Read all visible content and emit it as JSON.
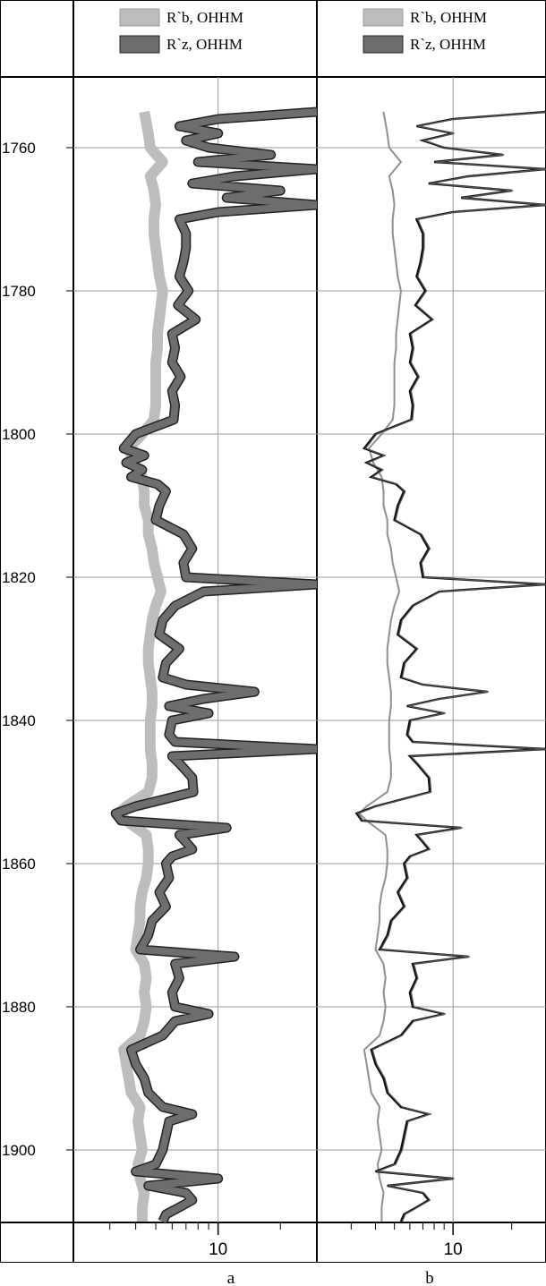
{
  "chart_data": {
    "type": "line",
    "layout": "well-log, two panels side by side sharing a depth axis",
    "y_axis": {
      "ylim": [
        1910,
        1755
      ],
      "ticks": [
        1760,
        1780,
        1800,
        1820,
        1840,
        1860,
        1880,
        1900
      ],
      "inverted": true,
      "grid": true
    },
    "x_axis": {
      "scale": "log",
      "xlim": [
        2,
        30
      ],
      "tick_labels": [
        {
          "value": 10,
          "label": "10"
        }
      ],
      "minor_ticks": [
        2,
        3,
        4,
        5,
        6,
        7,
        8,
        9,
        20,
        30
      ],
      "grid": true
    },
    "legend": [
      {
        "key": "rb",
        "label": "R`b, OHHM",
        "color": "#bdbdbd"
      },
      {
        "key": "rz",
        "label": "R`z, OHHM",
        "color": "#6e6e6e"
      }
    ],
    "panels": [
      {
        "id": "a",
        "label": "a",
        "rb_style": "thick light band",
        "rz_style": "thick dark band"
      },
      {
        "id": "b",
        "label": "b",
        "rb_style": "thin light line",
        "rz_style": "thin dark line"
      }
    ],
    "series": [
      {
        "name": "R`b, OHHM",
        "key": "rb",
        "points": [
          [
            1755,
            4.4
          ],
          [
            1758,
            4.6
          ],
          [
            1760,
            4.7
          ],
          [
            1762,
            5.4
          ],
          [
            1764,
            4.7
          ],
          [
            1766,
            4.9
          ],
          [
            1768,
            5.0
          ],
          [
            1770,
            4.9
          ],
          [
            1772,
            4.9
          ],
          [
            1774,
            5.0
          ],
          [
            1776,
            5.1
          ],
          [
            1778,
            5.2
          ],
          [
            1780,
            5.4
          ],
          [
            1782,
            5.3
          ],
          [
            1784,
            5.2
          ],
          [
            1786,
            5.1
          ],
          [
            1788,
            5.1
          ],
          [
            1790,
            5.0
          ],
          [
            1792,
            5.0
          ],
          [
            1794,
            5.0
          ],
          [
            1796,
            5.0
          ],
          [
            1798,
            4.9
          ],
          [
            1800,
            4.3
          ],
          [
            1802,
            3.7
          ],
          [
            1804,
            3.9
          ],
          [
            1806,
            4.3
          ],
          [
            1808,
            4.4
          ],
          [
            1810,
            4.4
          ],
          [
            1812,
            4.6
          ],
          [
            1814,
            4.6
          ],
          [
            1816,
            4.8
          ],
          [
            1818,
            4.9
          ],
          [
            1820,
            5.1
          ],
          [
            1822,
            5.3
          ],
          [
            1824,
            5.0
          ],
          [
            1826,
            4.8
          ],
          [
            1828,
            4.7
          ],
          [
            1830,
            4.6
          ],
          [
            1832,
            4.6
          ],
          [
            1834,
            4.7
          ],
          [
            1836,
            4.8
          ],
          [
            1838,
            4.8
          ],
          [
            1840,
            4.7
          ],
          [
            1842,
            4.7
          ],
          [
            1844,
            4.7
          ],
          [
            1846,
            4.8
          ],
          [
            1848,
            4.8
          ],
          [
            1850,
            4.6
          ],
          [
            1852,
            3.6
          ],
          [
            1853,
            3.3
          ],
          [
            1854,
            3.6
          ],
          [
            1856,
            4.5
          ],
          [
            1858,
            4.6
          ],
          [
            1860,
            4.6
          ],
          [
            1862,
            4.5
          ],
          [
            1864,
            4.3
          ],
          [
            1866,
            4.2
          ],
          [
            1868,
            4.2
          ],
          [
            1870,
            4.1
          ],
          [
            1872,
            4.0
          ],
          [
            1874,
            4.4
          ],
          [
            1876,
            4.5
          ],
          [
            1878,
            4.4
          ],
          [
            1880,
            4.5
          ],
          [
            1882,
            4.4
          ],
          [
            1884,
            4.2
          ],
          [
            1886,
            3.5
          ],
          [
            1888,
            3.6
          ],
          [
            1890,
            3.7
          ],
          [
            1892,
            3.8
          ],
          [
            1894,
            4.2
          ],
          [
            1896,
            4.1
          ],
          [
            1898,
            4.2
          ],
          [
            1900,
            4.3
          ],
          [
            1902,
            4.1
          ],
          [
            1904,
            4.2
          ],
          [
            1906,
            4.4
          ],
          [
            1908,
            4.3
          ],
          [
            1910,
            4.3
          ]
        ]
      },
      {
        "name": "R`z, OHHM",
        "key": "rz",
        "points": [
          [
            1755,
            30
          ],
          [
            1756,
            10
          ],
          [
            1757,
            6.5
          ],
          [
            1758,
            10
          ],
          [
            1759,
            7
          ],
          [
            1760,
            9
          ],
          [
            1761,
            18
          ],
          [
            1762,
            8
          ],
          [
            1763,
            30
          ],
          [
            1764,
            12
          ],
          [
            1765,
            7.5
          ],
          [
            1766,
            20
          ],
          [
            1767,
            11
          ],
          [
            1768,
            30
          ],
          [
            1769,
            10
          ],
          [
            1770,
            6.5
          ],
          [
            1772,
            7
          ],
          [
            1774,
            7
          ],
          [
            1776,
            6.8
          ],
          [
            1778,
            6.5
          ],
          [
            1780,
            7.2
          ],
          [
            1782,
            6.4
          ],
          [
            1784,
            7.8
          ],
          [
            1786,
            6.0
          ],
          [
            1788,
            6.2
          ],
          [
            1790,
            6.0
          ],
          [
            1792,
            6.6
          ],
          [
            1794,
            6.0
          ],
          [
            1796,
            6.2
          ],
          [
            1798,
            6.1
          ],
          [
            1800,
            4.0
          ],
          [
            1802,
            3.5
          ],
          [
            1803,
            4.4
          ],
          [
            1804,
            3.6
          ],
          [
            1805,
            4.3
          ],
          [
            1806,
            3.8
          ],
          [
            1807,
            5.1
          ],
          [
            1808,
            5.6
          ],
          [
            1810,
            5.2
          ],
          [
            1812,
            5.0
          ],
          [
            1814,
            6.8
          ],
          [
            1816,
            7.5
          ],
          [
            1818,
            6.8
          ],
          [
            1820,
            7.0
          ],
          [
            1821,
            30
          ],
          [
            1822,
            8.5
          ],
          [
            1824,
            6.2
          ],
          [
            1826,
            5.4
          ],
          [
            1828,
            5.2
          ],
          [
            1830,
            6.5
          ],
          [
            1832,
            5.6
          ],
          [
            1834,
            5.4
          ],
          [
            1835,
            7.0
          ],
          [
            1836,
            15
          ],
          [
            1837,
            8.5
          ],
          [
            1838,
            5.8
          ],
          [
            1839,
            9.0
          ],
          [
            1840,
            6.0
          ],
          [
            1842,
            5.8
          ],
          [
            1843,
            6.2
          ],
          [
            1844,
            30
          ],
          [
            1845,
            6.0
          ],
          [
            1846,
            6.5
          ],
          [
            1848,
            7.5
          ],
          [
            1850,
            7.6
          ],
          [
            1852,
            4.0
          ],
          [
            1853,
            3.2
          ],
          [
            1854,
            3.4
          ],
          [
            1855,
            11
          ],
          [
            1856,
            6.5
          ],
          [
            1857,
            7.0
          ],
          [
            1858,
            7.5
          ],
          [
            1859,
            6.0
          ],
          [
            1860,
            5.6
          ],
          [
            1862,
            5.8
          ],
          [
            1864,
            5.2
          ],
          [
            1866,
            5.6
          ],
          [
            1868,
            4.8
          ],
          [
            1870,
            4.6
          ],
          [
            1872,
            4.2
          ],
          [
            1873,
            12
          ],
          [
            1874,
            6.2
          ],
          [
            1876,
            6.5
          ],
          [
            1878,
            6.0
          ],
          [
            1880,
            6.2
          ],
          [
            1881,
            9.0
          ],
          [
            1882,
            6.2
          ],
          [
            1884,
            5.4
          ],
          [
            1886,
            3.8
          ],
          [
            1888,
            4.0
          ],
          [
            1890,
            4.4
          ],
          [
            1892,
            4.6
          ],
          [
            1894,
            5.4
          ],
          [
            1895,
            7.5
          ],
          [
            1896,
            5.8
          ],
          [
            1898,
            5.6
          ],
          [
            1900,
            5.4
          ],
          [
            1902,
            5.0
          ],
          [
            1903,
            4.0
          ],
          [
            1904,
            10
          ],
          [
            1905,
            4.6
          ],
          [
            1906,
            7.0
          ],
          [
            1907,
            7.5
          ],
          [
            1908,
            6.5
          ],
          [
            1909,
            5.6
          ],
          [
            1910,
            5.4
          ]
        ]
      }
    ]
  }
}
